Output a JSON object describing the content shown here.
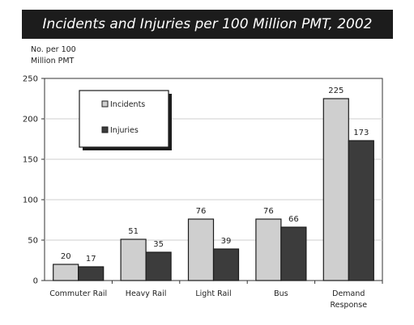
{
  "chart_data": {
    "type": "bar",
    "title": "Incidents and Injuries per 100 Million PMT, 2002",
    "ylabel_lines": [
      "No. per 100",
      "Million PMT"
    ],
    "xlabel": "",
    "categories": [
      "Commuter Rail",
      "Heavy Rail",
      "Light Rail",
      "Bus",
      "Demand Response"
    ],
    "category_lines": [
      [
        "Commuter Rail"
      ],
      [
        "Heavy Rail"
      ],
      [
        "Light Rail"
      ],
      [
        "Bus"
      ],
      [
        "Demand",
        "Response"
      ]
    ],
    "series": [
      {
        "name": "Incidents",
        "color": "#cfcfcf",
        "values": [
          20,
          51,
          76,
          76,
          225
        ]
      },
      {
        "name": "Injuries",
        "color": "#3c3c3c",
        "values": [
          17,
          35,
          39,
          66,
          173
        ]
      }
    ],
    "ylim": [
      0,
      250
    ],
    "yticks": [
      0,
      50,
      100,
      150,
      200,
      250
    ],
    "grid": true,
    "legend_position": "top-left"
  }
}
